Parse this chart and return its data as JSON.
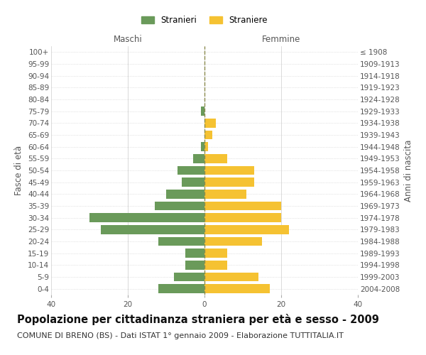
{
  "age_groups": [
    "0-4",
    "5-9",
    "10-14",
    "15-19",
    "20-24",
    "25-29",
    "30-34",
    "35-39",
    "40-44",
    "45-49",
    "50-54",
    "55-59",
    "60-64",
    "65-69",
    "70-74",
    "75-79",
    "80-84",
    "85-89",
    "90-94",
    "95-99",
    "100+"
  ],
  "birth_years": [
    "2004-2008",
    "1999-2003",
    "1994-1998",
    "1989-1993",
    "1984-1988",
    "1979-1983",
    "1974-1978",
    "1969-1973",
    "1964-1968",
    "1959-1963",
    "1954-1958",
    "1949-1953",
    "1944-1948",
    "1939-1943",
    "1934-1938",
    "1929-1933",
    "1924-1928",
    "1919-1923",
    "1914-1918",
    "1909-1913",
    "≤ 1908"
  ],
  "males": [
    12,
    8,
    5,
    5,
    12,
    27,
    30,
    13,
    10,
    6,
    7,
    3,
    1,
    0,
    0,
    1,
    0,
    0,
    0,
    0,
    0
  ],
  "females": [
    17,
    14,
    6,
    6,
    15,
    22,
    20,
    20,
    11,
    13,
    13,
    6,
    1,
    2,
    3,
    0,
    0,
    0,
    0,
    0,
    0
  ],
  "male_color": "#6a9a5a",
  "female_color": "#f5c232",
  "dashed_line_color": "#8b8b4e",
  "background_color": "#ffffff",
  "grid_color": "#cccccc",
  "title": "Popolazione per cittadinanza straniera per età e sesso - 2009",
  "subtitle": "COMUNE DI BRENO (BS) - Dati ISTAT 1° gennaio 2009 - Elaborazione TUTTITALIA.IT",
  "xlabel_left": "Maschi",
  "xlabel_right": "Femmine",
  "ylabel_left": "Fasce di età",
  "ylabel_right": "Anni di nascita",
  "legend_male": "Stranieri",
  "legend_female": "Straniere",
  "xlim": 40,
  "title_fontsize": 10.5,
  "subtitle_fontsize": 8,
  "tick_fontsize": 7.5,
  "label_fontsize": 8.5
}
